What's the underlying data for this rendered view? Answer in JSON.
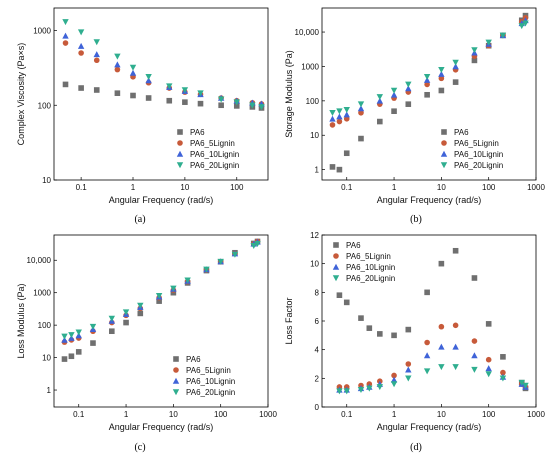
{
  "series_names": [
    "PA6",
    "PA6_5Lignin",
    "PA6_10Lignin",
    "PA6_20Lignin"
  ],
  "series_colors": [
    "#6f6f6f",
    "#c75a3a",
    "#3f63d8",
    "#2fae8f"
  ],
  "chart_data": [
    {
      "panel_label": "(a)",
      "type": "scatter",
      "xlabel": "Angular Frequency (rad/s)",
      "ylabel": "Complex Viscosity (Pa×s)",
      "xscale": "log",
      "yscale": "log",
      "xlim": [
        0.03,
        400
      ],
      "ylim": [
        10,
        2000
      ],
      "xticks": [
        0.1,
        1,
        10,
        100
      ],
      "xtick_labels": [
        "0.1",
        "1",
        "10",
        "100"
      ],
      "yticks": [
        10,
        100,
        1000
      ],
      "ytick_labels": [
        "10",
        "100",
        "1000"
      ],
      "legend_position": "bottom-right",
      "x": [
        0.05,
        0.1,
        0.2,
        0.5,
        1,
        2,
        5,
        10,
        20,
        50,
        100,
        200,
        300
      ],
      "series": [
        {
          "name": "PA6",
          "values": [
            190,
            170,
            160,
            145,
            135,
            125,
            115,
            110,
            105,
            100,
            98,
            95,
            92
          ]
        },
        {
          "name": "PA6_5Lignin",
          "values": [
            680,
            500,
            400,
            300,
            240,
            200,
            170,
            150,
            140,
            125,
            115,
            108,
            104
          ]
        },
        {
          "name": "PA6_10Lignin",
          "values": [
            850,
            620,
            480,
            350,
            270,
            215,
            175,
            155,
            140,
            125,
            115,
            108,
            105
          ]
        },
        {
          "name": "PA6_20Lignin",
          "values": [
            1300,
            950,
            700,
            450,
            320,
            240,
            180,
            160,
            145,
            120,
            110,
            100,
            95
          ]
        }
      ]
    },
    {
      "panel_label": "(b)",
      "type": "scatter",
      "xlabel": "Angular Frequency (rad/s)",
      "ylabel": "Storage Modulus (Pa)",
      "xscale": "log",
      "yscale": "log",
      "xlim": [
        0.03,
        1000
      ],
      "ylim": [
        0.5,
        50000
      ],
      "xticks": [
        0.1,
        1,
        10,
        100,
        1000
      ],
      "xtick_labels": [
        "0.1",
        "1",
        "10",
        "100",
        "1000"
      ],
      "yticks": [
        1,
        10,
        100,
        1000,
        10000
      ],
      "ytick_labels": [
        "1",
        "10",
        "100",
        "1000",
        "10,000"
      ],
      "legend_position": "bottom-right",
      "x": [
        0.05,
        0.07,
        0.1,
        0.2,
        0.5,
        1,
        2,
        5,
        10,
        20,
        50,
        100,
        200,
        500,
        600
      ],
      "series": [
        {
          "name": "PA6",
          "values": [
            1.2,
            1.0,
            3,
            8,
            25,
            50,
            80,
            150,
            200,
            350,
            1500,
            4000,
            8000,
            22000,
            30000
          ]
        },
        {
          "name": "PA6_5Lignin",
          "values": [
            20,
            25,
            30,
            45,
            80,
            120,
            180,
            300,
            450,
            800,
            2000,
            4000,
            8000,
            20000,
            26000
          ]
        },
        {
          "name": "PA6_10Lignin",
          "values": [
            30,
            35,
            40,
            60,
            100,
            150,
            230,
            400,
            600,
            1000,
            2500,
            4500,
            8000,
            18000,
            22000
          ]
        },
        {
          "name": "PA6_20Lignin",
          "values": [
            45,
            50,
            55,
            80,
            130,
            200,
            300,
            500,
            800,
            1300,
            3000,
            5000,
            8000,
            15000,
            18000
          ]
        }
      ]
    },
    {
      "panel_label": "(c)",
      "type": "scatter",
      "xlabel": "Angular Frequency (rad/s)",
      "ylabel": "Loss Modulus (Pa)",
      "xscale": "log",
      "yscale": "log",
      "xlim": [
        0.03,
        1000
      ],
      "ylim": [
        0.3,
        60000
      ],
      "xticks": [
        0.1,
        1,
        10,
        100,
        1000
      ],
      "xtick_labels": [
        "0.1",
        "1",
        "10",
        "100",
        "1000"
      ],
      "yticks": [
        1,
        10,
        100,
        1000,
        10000
      ],
      "ytick_labels": [
        "1",
        "10",
        "100",
        "1000",
        "10,000"
      ],
      "legend_position": "bottom-right",
      "x": [
        0.05,
        0.07,
        0.1,
        0.2,
        0.5,
        1,
        2,
        5,
        10,
        20,
        50,
        100,
        200,
        500,
        600
      ],
      "series": [
        {
          "name": "PA6",
          "values": [
            9,
            11,
            15,
            28,
            65,
            120,
            230,
            550,
            1000,
            2000,
            4800,
            9000,
            17000,
            33000,
            38000
          ]
        },
        {
          "name": "PA6_5Lignin",
          "values": [
            30,
            35,
            40,
            65,
            120,
            200,
            330,
            700,
            1200,
            2200,
            5000,
            9000,
            16000,
            32000,
            38000
          ]
        },
        {
          "name": "PA6_10Lignin",
          "values": [
            35,
            40,
            48,
            75,
            135,
            220,
            360,
            750,
            1300,
            2300,
            5200,
            9200,
            16000,
            32000,
            37000
          ]
        },
        {
          "name": "PA6_20Lignin",
          "values": [
            45,
            50,
            60,
            90,
            160,
            250,
            400,
            800,
            1350,
            2400,
            5200,
            9000,
            15000,
            28000,
            32000
          ]
        }
      ]
    },
    {
      "panel_label": "(d)",
      "type": "scatter",
      "xlabel": "Angular Frequency (rad/s)",
      "ylabel": "Loss Factor",
      "xscale": "log",
      "yscale": "linear",
      "xlim": [
        0.03,
        1000
      ],
      "ylim": [
        0,
        12
      ],
      "xticks": [
        0.1,
        1,
        10,
        100,
        1000
      ],
      "xtick_labels": [
        "0.1",
        "1",
        "10",
        "100",
        "1000"
      ],
      "yticks": [
        0,
        2,
        4,
        6,
        8,
        10,
        12
      ],
      "ytick_labels": [
        "0",
        "2",
        "4",
        "6",
        "8",
        "10",
        "12"
      ],
      "legend_position": "top-left",
      "x": [
        0.07,
        0.1,
        0.2,
        0.3,
        0.5,
        1,
        2,
        5,
        10,
        20,
        50,
        100,
        200,
        500,
        600
      ],
      "series": [
        {
          "name": "PA6",
          "values": [
            7.8,
            7.3,
            6.2,
            5.5,
            5.1,
            5.0,
            5.4,
            8.0,
            10.0,
            10.9,
            9.0,
            5.8,
            3.5,
            1.7,
            1.3
          ]
        },
        {
          "name": "PA6_5Lignin",
          "values": [
            1.4,
            1.4,
            1.5,
            1.6,
            1.8,
            2.2,
            3.0,
            4.5,
            5.6,
            5.7,
            4.6,
            3.3,
            2.4,
            1.6,
            1.4
          ]
        },
        {
          "name": "PA6_10Lignin",
          "values": [
            1.2,
            1.2,
            1.3,
            1.4,
            1.6,
            1.9,
            2.6,
            3.6,
            4.2,
            4.2,
            3.6,
            2.7,
            2.1,
            1.6,
            1.4
          ]
        },
        {
          "name": "PA6_20Lignin",
          "values": [
            1.1,
            1.1,
            1.2,
            1.3,
            1.4,
            1.6,
            2.0,
            2.5,
            2.8,
            2.8,
            2.6,
            2.3,
            2.0,
            1.7,
            1.5
          ]
        }
      ]
    }
  ]
}
